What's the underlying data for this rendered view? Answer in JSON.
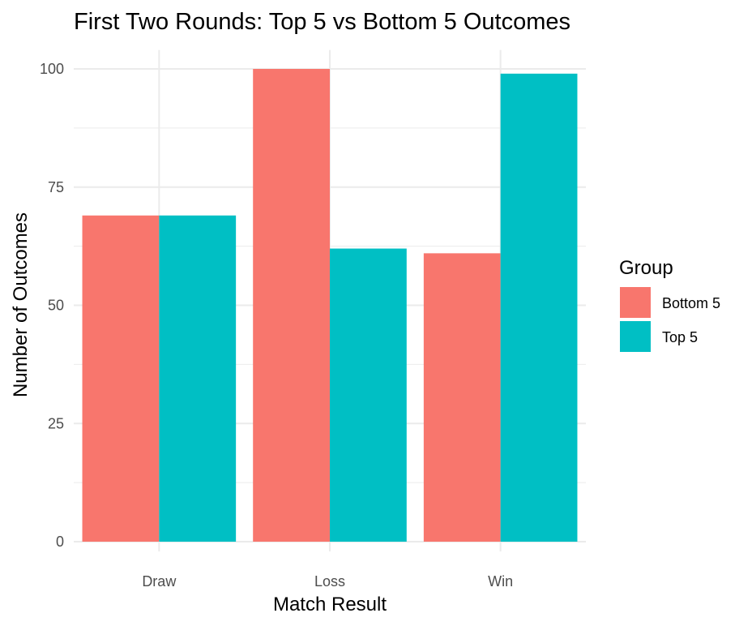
{
  "chart_data": {
    "type": "bar",
    "title": "First Two Rounds: Top 5 vs Bottom 5 Outcomes",
    "xlabel": "Match Result",
    "ylabel": "Number of Outcomes",
    "categories": [
      "Draw",
      "Loss",
      "Win"
    ],
    "series": [
      {
        "name": "Bottom 5",
        "values": [
          69,
          100,
          61
        ],
        "color": "#F8766D"
      },
      {
        "name": "Top 5",
        "values": [
          69,
          62,
          99
        ],
        "color": "#00BFC4"
      }
    ],
    "ylim": [
      0,
      104
    ],
    "yticks": [
      0,
      25,
      50,
      75,
      100
    ],
    "grid": true,
    "legend": {
      "title": "Group",
      "placement": "right"
    }
  }
}
